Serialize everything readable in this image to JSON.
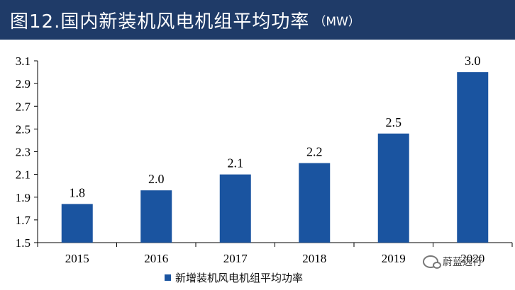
{
  "header": {
    "title": "图12.国内新装机风电机组平均功率",
    "unit": "（MW）",
    "background": "#1f3b68"
  },
  "chart_data": {
    "type": "bar",
    "title": "图12.国内新装机风电机组平均功率（MW）",
    "xlabel": "",
    "ylabel": "",
    "categories": [
      "2015",
      "2016",
      "2017",
      "2018",
      "2019",
      "2020"
    ],
    "series": [
      {
        "name": "新增装机风电机组平均功率",
        "values": [
          1.84,
          1.96,
          2.1,
          2.2,
          2.46,
          3.0
        ],
        "data_labels": [
          "1.8",
          "2.0",
          "2.1",
          "2.2",
          "2.5",
          "3.0"
        ],
        "color": "#1a54a0"
      }
    ],
    "ylim": [
      1.5,
      3.1
    ],
    "yticks": [
      "1.5",
      "1.7",
      "1.9",
      "2.1",
      "2.3",
      "2.5",
      "2.7",
      "2.9",
      "3.1"
    ],
    "grid": false,
    "legend_position": "bottom"
  },
  "watermark": {
    "text": "蔚蓝远行",
    "icon": "wechat-icon"
  }
}
